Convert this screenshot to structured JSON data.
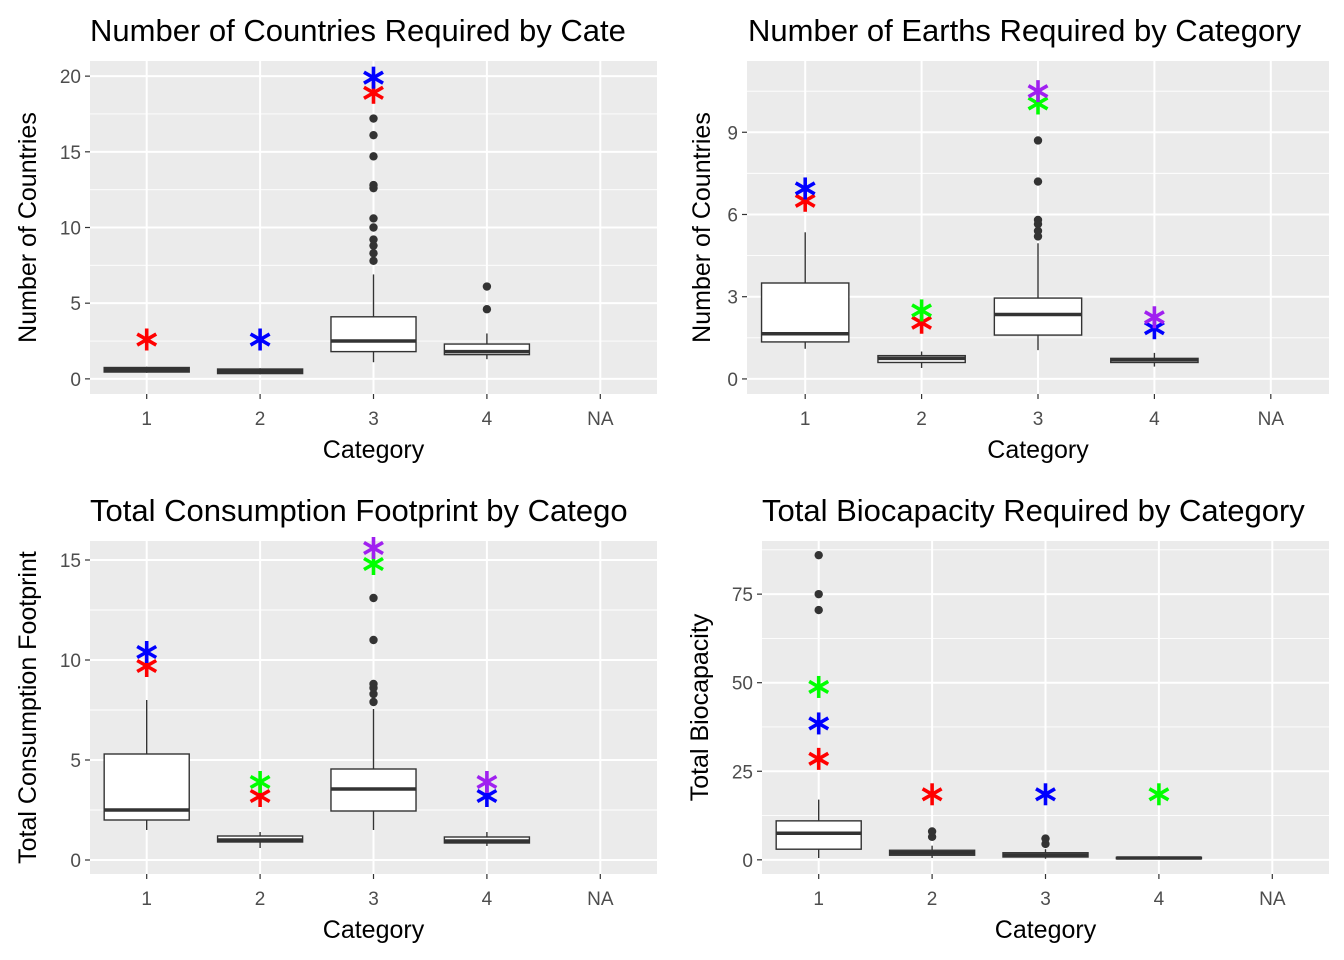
{
  "colors": {
    "panel_bg": "#ebebeb",
    "grid": "#ffffff",
    "box_line": "#333333",
    "red": "#ff0000",
    "blue": "#0000ff",
    "green": "#00ff00",
    "purple": "#a020f0"
  },
  "chart_data": [
    {
      "type": "box",
      "title": "Number of Countries Required by Cate",
      "xlabel": "Category",
      "ylabel": "Number of Countries",
      "categories": [
        "1",
        "2",
        "3",
        "4",
        "NA"
      ],
      "ylim": [
        -1,
        21
      ],
      "yticks": [
        0,
        5,
        10,
        15,
        20
      ],
      "yticks_text": [
        "0",
        "5",
        "10",
        "15",
        "20"
      ],
      "boxes": [
        {
          "category": "1",
          "min": 0.4,
          "q1": 0.45,
          "median": 0.6,
          "q3": 0.75,
          "max": 0.8,
          "outliers": []
        },
        {
          "category": "2",
          "min": 0.3,
          "q1": 0.35,
          "median": 0.5,
          "q3": 0.65,
          "max": 0.7,
          "outliers": []
        },
        {
          "category": "3",
          "min": 1.1,
          "q1": 1.8,
          "median": 2.5,
          "q3": 4.1,
          "max": 6.9,
          "outliers": [
            7.8,
            8.3,
            8.8,
            9.2,
            10.0,
            10.6,
            12.6,
            12.8,
            14.7,
            16.1,
            17.2
          ]
        },
        {
          "category": "4",
          "min": 1.3,
          "q1": 1.6,
          "median": 1.8,
          "q3": 2.3,
          "max": 3.0,
          "outliers": [
            4.6,
            6.1
          ]
        }
      ],
      "stars": [
        {
          "category": "1",
          "value": 2.6,
          "color": "red"
        },
        {
          "category": "2",
          "value": 2.6,
          "color": "blue"
        },
        {
          "category": "3",
          "value": 18.9,
          "color": "red"
        },
        {
          "category": "3",
          "value": 19.9,
          "color": "blue"
        }
      ]
    },
    {
      "type": "box",
      "title": "Number of Earths Required by Category",
      "xlabel": "Category",
      "ylabel": "Number of Countries",
      "categories": [
        "1",
        "2",
        "3",
        "4",
        "NA"
      ],
      "ylim": [
        -0.55,
        11.6
      ],
      "yticks": [
        0,
        3,
        6,
        9
      ],
      "yticks_text": [
        "0",
        "3",
        "6",
        "9"
      ],
      "boxes": [
        {
          "category": "1",
          "min": 1.1,
          "q1": 1.35,
          "median": 1.65,
          "q3": 3.5,
          "max": 5.35,
          "outliers": []
        },
        {
          "category": "2",
          "min": 0.4,
          "q1": 0.6,
          "median": 0.75,
          "q3": 0.85,
          "max": 1.0,
          "outliers": []
        },
        {
          "category": "3",
          "min": 1.05,
          "q1": 1.6,
          "median": 2.35,
          "q3": 2.95,
          "max": 4.95,
          "outliers": [
            5.2,
            5.4,
            5.65,
            5.8,
            7.2,
            8.7
          ]
        },
        {
          "category": "4",
          "min": 0.45,
          "q1": 0.6,
          "median": 0.7,
          "q3": 0.75,
          "max": 0.95,
          "outliers": []
        }
      ],
      "stars": [
        {
          "category": "1",
          "value": 6.5,
          "color": "red"
        },
        {
          "category": "1",
          "value": 6.95,
          "color": "blue"
        },
        {
          "category": "2",
          "value": 2.05,
          "color": "red"
        },
        {
          "category": "2",
          "value": 2.5,
          "color": "green"
        },
        {
          "category": "3",
          "value": 10.05,
          "color": "green"
        },
        {
          "category": "3",
          "value": 10.5,
          "color": "purple"
        },
        {
          "category": "4",
          "value": 1.85,
          "color": "blue"
        },
        {
          "category": "4",
          "value": 2.25,
          "color": "purple"
        }
      ]
    },
    {
      "type": "box",
      "title": "Total Consumption Footprint by Catego",
      "xlabel": "Category",
      "ylabel": "Total Consumption Footprint",
      "categories": [
        "1",
        "2",
        "3",
        "4",
        "NA"
      ],
      "ylim": [
        -0.7,
        15.95
      ],
      "yticks": [
        0,
        5,
        10,
        15
      ],
      "yticks_text": [
        "0",
        "5",
        "10",
        "15"
      ],
      "boxes": [
        {
          "category": "1",
          "min": 1.5,
          "q1": 2.0,
          "median": 2.5,
          "q3": 5.3,
          "max": 8.0,
          "outliers": []
        },
        {
          "category": "2",
          "min": 0.6,
          "q1": 0.9,
          "median": 1.0,
          "q3": 1.2,
          "max": 1.4,
          "outliers": []
        },
        {
          "category": "3",
          "min": 1.5,
          "q1": 2.45,
          "median": 3.55,
          "q3": 4.55,
          "max": 7.55,
          "outliers": [
            7.9,
            8.3,
            8.6,
            8.8,
            11.0,
            13.1
          ]
        },
        {
          "category": "4",
          "min": 0.7,
          "q1": 0.85,
          "median": 0.95,
          "q3": 1.15,
          "max": 1.4,
          "outliers": []
        }
      ],
      "stars": [
        {
          "category": "1",
          "value": 9.7,
          "color": "red"
        },
        {
          "category": "1",
          "value": 10.4,
          "color": "blue"
        },
        {
          "category": "2",
          "value": 3.2,
          "color": "red"
        },
        {
          "category": "2",
          "value": 3.9,
          "color": "green"
        },
        {
          "category": "3",
          "value": 14.8,
          "color": "green"
        },
        {
          "category": "3",
          "value": 15.6,
          "color": "purple"
        },
        {
          "category": "4",
          "value": 3.2,
          "color": "blue"
        },
        {
          "category": "4",
          "value": 3.9,
          "color": "purple"
        }
      ]
    },
    {
      "type": "box",
      "title": "Total Biocapacity Required by Category",
      "xlabel": "Category",
      "ylabel": "Total Biocapacity",
      "categories": [
        "1",
        "2",
        "3",
        "4",
        "NA"
      ],
      "ylim": [
        -4,
        90
      ],
      "yticks": [
        0,
        25,
        50,
        75
      ],
      "yticks_text": [
        "0",
        "25",
        "50",
        "75"
      ],
      "boxes": [
        {
          "category": "1",
          "min": 0.5,
          "q1": 3.0,
          "median": 7.5,
          "q3": 11.0,
          "max": 17.0,
          "outliers": [
            70.5,
            75.0,
            86.0
          ]
        },
        {
          "category": "2",
          "min": 0.5,
          "q1": 1.3,
          "median": 2.0,
          "q3": 2.7,
          "max": 4.0,
          "outliers": [
            6.5,
            8.0
          ]
        },
        {
          "category": "3",
          "min": 0.3,
          "q1": 0.8,
          "median": 1.3,
          "q3": 2.0,
          "max": 3.0,
          "outliers": [
            4.5,
            6.0
          ]
        },
        {
          "category": "4",
          "min": 0.1,
          "q1": 0.3,
          "median": 0.5,
          "q3": 0.7,
          "max": 1.0,
          "outliers": []
        }
      ],
      "stars": [
        {
          "category": "1",
          "value": 28.5,
          "color": "red"
        },
        {
          "category": "1",
          "value": 38.5,
          "color": "blue"
        },
        {
          "category": "1",
          "value": 48.8,
          "color": "green"
        },
        {
          "category": "2",
          "value": 18.5,
          "color": "red"
        },
        {
          "category": "3",
          "value": 18.5,
          "color": "blue"
        },
        {
          "category": "4",
          "value": 18.5,
          "color": "green"
        }
      ]
    }
  ]
}
